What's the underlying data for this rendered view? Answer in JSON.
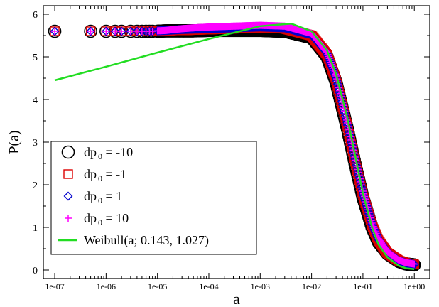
{
  "chart_data": {
    "type": "scatter",
    "xlabel": "a",
    "ylabel": "P(a)",
    "x_scale": "log",
    "xlim": [
      6e-08,
      2.0
    ],
    "ylim": [
      -0.2,
      6.2
    ],
    "x_ticks": [
      "1e-07",
      "1e-06",
      "1e-05",
      "1e-04",
      "1e-03",
      "1e-02",
      "1e-01",
      "1e+00"
    ],
    "y_ticks": [
      "0",
      "1",
      "2",
      "3",
      "4",
      "5",
      "6"
    ],
    "grid": false,
    "legend_position": "bottom-left",
    "series": [
      {
        "name": "dp 0 = -10",
        "legend_main": "dp",
        "legend_sub": "0",
        "legend_tail": " = -10",
        "marker": "circle",
        "color": "#000000",
        "x": [
          1e-07,
          5e-07,
          1e-06,
          1.5e-06,
          2e-06,
          3e-06,
          4e-06,
          5e-06,
          6e-06,
          7e-06,
          8e-06,
          1e-05,
          1.5e-05,
          2e-05,
          3e-05,
          5e-05,
          0.0001,
          0.0003,
          0.001,
          0.003,
          0.01,
          0.02,
          0.03,
          0.05,
          0.07,
          0.1,
          0.15,
          0.2,
          0.3,
          0.5,
          0.7,
          1.0
        ],
        "y": [
          5.6,
          5.6,
          5.6,
          5.6,
          5.6,
          5.6,
          5.6,
          5.6,
          5.6,
          5.6,
          5.6,
          5.6,
          5.61,
          5.61,
          5.61,
          5.61,
          5.62,
          5.62,
          5.62,
          5.6,
          5.45,
          5.0,
          4.4,
          3.3,
          2.5,
          1.7,
          1.0,
          0.65,
          0.38,
          0.2,
          0.14,
          0.12
        ]
      },
      {
        "name": "dp 0 = -1",
        "legend_main": "dp",
        "legend_sub": "0",
        "legend_tail": " = -1",
        "marker": "square",
        "color": "#dd0000",
        "x": [
          1e-07,
          5e-07,
          1e-06,
          1.5e-06,
          2e-06,
          3e-06,
          4e-06,
          5e-06,
          6e-06,
          7e-06,
          8e-06,
          1e-05,
          1.5e-05,
          2e-05,
          3e-05,
          5e-05,
          0.0001,
          0.0003,
          0.001,
          0.003,
          0.01,
          0.02,
          0.03,
          0.05,
          0.07,
          0.1,
          0.15,
          0.2,
          0.3,
          0.5,
          0.7,
          1.0
        ],
        "y": [
          5.6,
          5.6,
          5.6,
          5.6,
          5.6,
          5.6,
          5.6,
          5.6,
          5.6,
          5.6,
          5.6,
          5.61,
          5.61,
          5.62,
          5.62,
          5.63,
          5.64,
          5.66,
          5.68,
          5.66,
          5.5,
          5.05,
          4.45,
          3.35,
          2.55,
          1.75,
          1.05,
          0.7,
          0.4,
          0.22,
          0.16,
          0.13
        ]
      },
      {
        "name": "dp 0 = 1",
        "legend_main": "dp",
        "legend_sub": "0",
        "legend_tail": " = 1",
        "marker": "diamond",
        "color": "#0000cc",
        "x": [
          1e-07,
          5e-07,
          1e-06,
          1.5e-06,
          2e-06,
          3e-06,
          4e-06,
          5e-06,
          6e-06,
          7e-06,
          8e-06,
          1e-05,
          1.5e-05,
          2e-05,
          3e-05,
          5e-05,
          0.0001,
          0.0003,
          0.001,
          0.003,
          0.01,
          0.02,
          0.03,
          0.05,
          0.07,
          0.1,
          0.15,
          0.2,
          0.3,
          0.5,
          0.7,
          1.0
        ],
        "y": [
          5.6,
          5.6,
          5.6,
          5.6,
          5.6,
          5.6,
          5.6,
          5.6,
          5.6,
          5.6,
          5.6,
          5.61,
          5.62,
          5.63,
          5.64,
          5.65,
          5.66,
          5.68,
          5.7,
          5.68,
          5.52,
          5.08,
          4.5,
          3.4,
          2.6,
          1.8,
          1.08,
          0.72,
          0.42,
          0.22,
          0.16,
          0.13
        ]
      },
      {
        "name": "dp 0 = 10",
        "legend_main": "dp",
        "legend_sub": "0",
        "legend_tail": " = 10",
        "marker": "plus",
        "color": "#ff00ff",
        "x": [
          1e-07,
          5e-07,
          1e-06,
          1.5e-06,
          2e-06,
          3e-06,
          4e-06,
          5e-06,
          6e-06,
          7e-06,
          8e-06,
          1e-05,
          1.5e-05,
          2e-05,
          3e-05,
          5e-05,
          0.0001,
          0.0003,
          0.001,
          0.003,
          0.01,
          0.02,
          0.03,
          0.05,
          0.07,
          0.1,
          0.15,
          0.2,
          0.3,
          0.5,
          0.7,
          1.0
        ],
        "y": [
          5.6,
          5.6,
          5.6,
          5.6,
          5.6,
          5.6,
          5.6,
          5.6,
          5.6,
          5.6,
          5.6,
          5.61,
          5.62,
          5.64,
          5.66,
          5.68,
          5.7,
          5.72,
          5.74,
          5.72,
          5.55,
          5.1,
          4.55,
          3.45,
          2.65,
          1.85,
          1.1,
          0.74,
          0.43,
          0.23,
          0.17,
          0.14
        ]
      },
      {
        "name": "Weibull(a; 0.143, 1.027)",
        "legend_main": "Weibull(a; 0.143, 1.027)",
        "legend_sub": "",
        "legend_tail": "",
        "marker": "line",
        "color": "#22dd22",
        "x": [
          1e-07,
          1e-06,
          1e-05,
          0.0001,
          0.001,
          0.004,
          0.01,
          0.02,
          0.03,
          0.05,
          0.07,
          0.1,
          0.15,
          0.2,
          0.3,
          0.5,
          0.7,
          1.0
        ],
        "y": [
          4.45,
          4.77,
          5.1,
          5.42,
          5.72,
          5.78,
          5.6,
          5.15,
          4.6,
          3.55,
          2.7,
          1.8,
          1.0,
          0.6,
          0.3,
          0.1,
          0.04,
          0.02
        ]
      }
    ]
  }
}
